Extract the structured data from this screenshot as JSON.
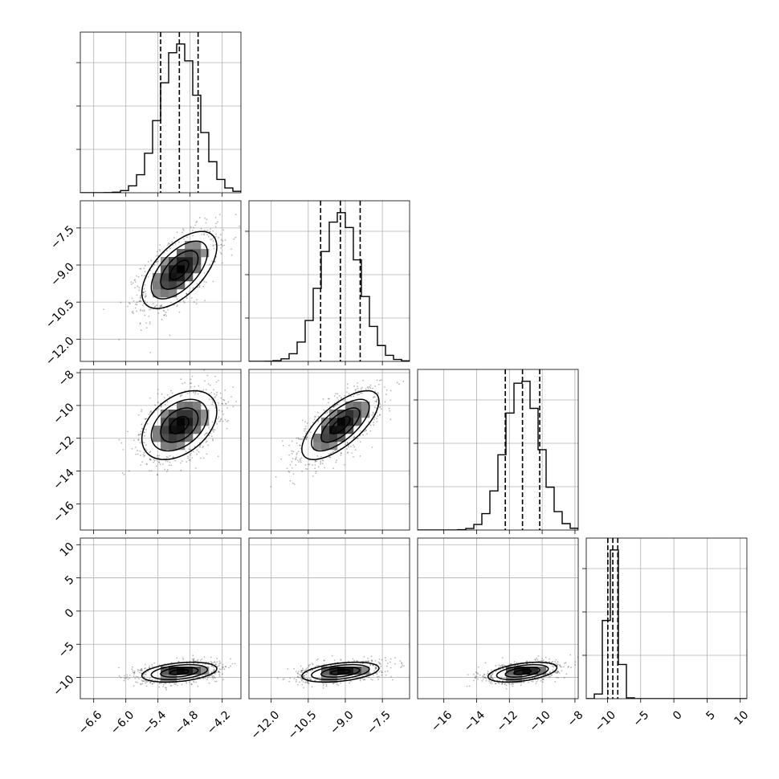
{
  "chart_data": {
    "type": "corner",
    "grid": true,
    "parameters": [
      {
        "index": 0,
        "range": [
          -6.85,
          -3.85
        ],
        "mean": -5.0,
        "sd": 0.35,
        "quantiles": [
          -5.35,
          -5.0,
          -4.65
        ],
        "ticks": [
          -6.6,
          -6.0,
          -5.4,
          -4.8,
          -4.2
        ],
        "tick_labels": [
          "−6.6",
          "−6.0",
          "−5.4",
          "−4.8",
          "−4.2"
        ]
      },
      {
        "index": 1,
        "range": [
          -12.9,
          -6.4
        ],
        "mean": -9.2,
        "sd": 0.78,
        "quantiles": [
          -10.0,
          -9.2,
          -8.4
        ],
        "ticks": [
          -12.0,
          -10.5,
          -9.0,
          -7.5
        ],
        "tick_labels": [
          "−12.0",
          "−10.5",
          "−9.0",
          "−7.5"
        ]
      },
      {
        "index": 2,
        "range": [
          -17.6,
          -7.8
        ],
        "mean": -11.2,
        "sd": 1.05,
        "quantiles": [
          -12.25,
          -11.2,
          -10.15
        ],
        "ticks": [
          -16,
          -14,
          -12,
          -10,
          -8
        ],
        "tick_labels": [
          "−16",
          "−14",
          "−12",
          "−10",
          "−8"
        ]
      },
      {
        "index": 3,
        "range": [
          -13.2,
          11.0
        ],
        "mean": -9.2,
        "sd": 0.75,
        "quantiles": [
          -9.95,
          -9.2,
          -8.45
        ],
        "ticks": [
          -10,
          -5,
          0,
          5,
          10
        ],
        "tick_labels": [
          "−10",
          "−5",
          "0",
          "5",
          "10"
        ]
      }
    ],
    "correlations": {
      "1-0": 0.6,
      "2-0": 0.4,
      "2-1": 0.7,
      "3-0": 0.35,
      "3-1": 0.4,
      "3-2": 0.45
    }
  }
}
